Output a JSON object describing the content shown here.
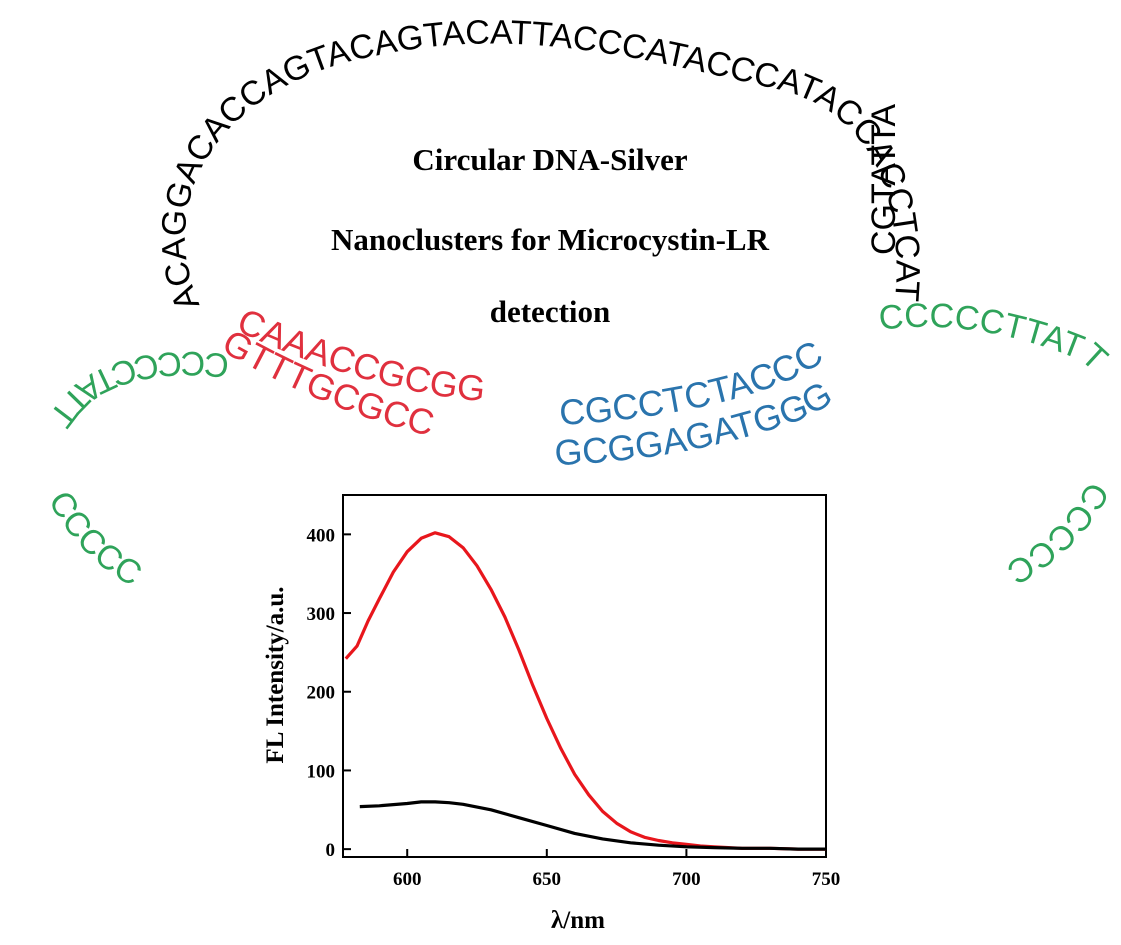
{
  "title": {
    "line1": "Circular DNA-Silver",
    "line2": "Nanoclusters for Microcystin-LR",
    "line3": "detection"
  },
  "colors": {
    "loop": "#000000",
    "red_strand": "#e0303e",
    "blue_strand": "#2a74ad",
    "green_strand": "#2fa35a",
    "series_red": "#e8161c",
    "series_black": "#000000"
  },
  "dna": {
    "loop_sequence": "ACAGGACACCAGTACAGTACATTACCCATACCCATACCACCTCATTATTTAT",
    "loop_tail": "CGTATTA",
    "left_arm": {
      "outer": "CCCCCTATT",
      "inner": "CAAACCGCGG",
      "inner_complement": "GTTTGCGCC",
      "end": "CCCCC"
    },
    "right_arm": {
      "outer": "CGCCTCTACCC",
      "complement": "GCGGAGATGGG",
      "green": "CCCCCTTATT",
      "end": "CCCCC"
    }
  },
  "chart_data": {
    "type": "line",
    "title": "",
    "xlabel": "λ/nm",
    "ylabel": "FL Intensity/a.u.",
    "xlim": [
      577,
      750
    ],
    "ylim": [
      -10,
      450
    ],
    "xticks": [
      600,
      650,
      700,
      750
    ],
    "yticks": [
      0,
      100,
      200,
      300,
      400
    ],
    "grid": false,
    "series": [
      {
        "color": "#e8161c",
        "x": [
          578,
          582,
          586,
          590,
          595,
          600,
          605,
          610,
          615,
          620,
          625,
          630,
          635,
          640,
          645,
          650,
          655,
          660,
          665,
          670,
          675,
          680,
          685,
          690,
          695,
          700,
          705,
          710,
          715,
          720,
          725,
          730,
          740,
          750
        ],
        "y": [
          242,
          258,
          290,
          318,
          352,
          378,
          395,
          402,
          397,
          383,
          360,
          330,
          295,
          253,
          208,
          166,
          128,
          95,
          69,
          48,
          33,
          22,
          15,
          11,
          8,
          6,
          4,
          3,
          2,
          1,
          1,
          1,
          0,
          0
        ]
      },
      {
        "color": "#000000",
        "x": [
          583,
          590,
          600,
          605,
          610,
          615,
          620,
          630,
          640,
          650,
          660,
          670,
          680,
          690,
          700,
          710,
          720,
          730,
          740,
          750
        ],
        "y": [
          54,
          55,
          58,
          60,
          60,
          59,
          57,
          50,
          40,
          30,
          20,
          13,
          8,
          5,
          3,
          2,
          1,
          1,
          0,
          0
        ]
      }
    ]
  }
}
